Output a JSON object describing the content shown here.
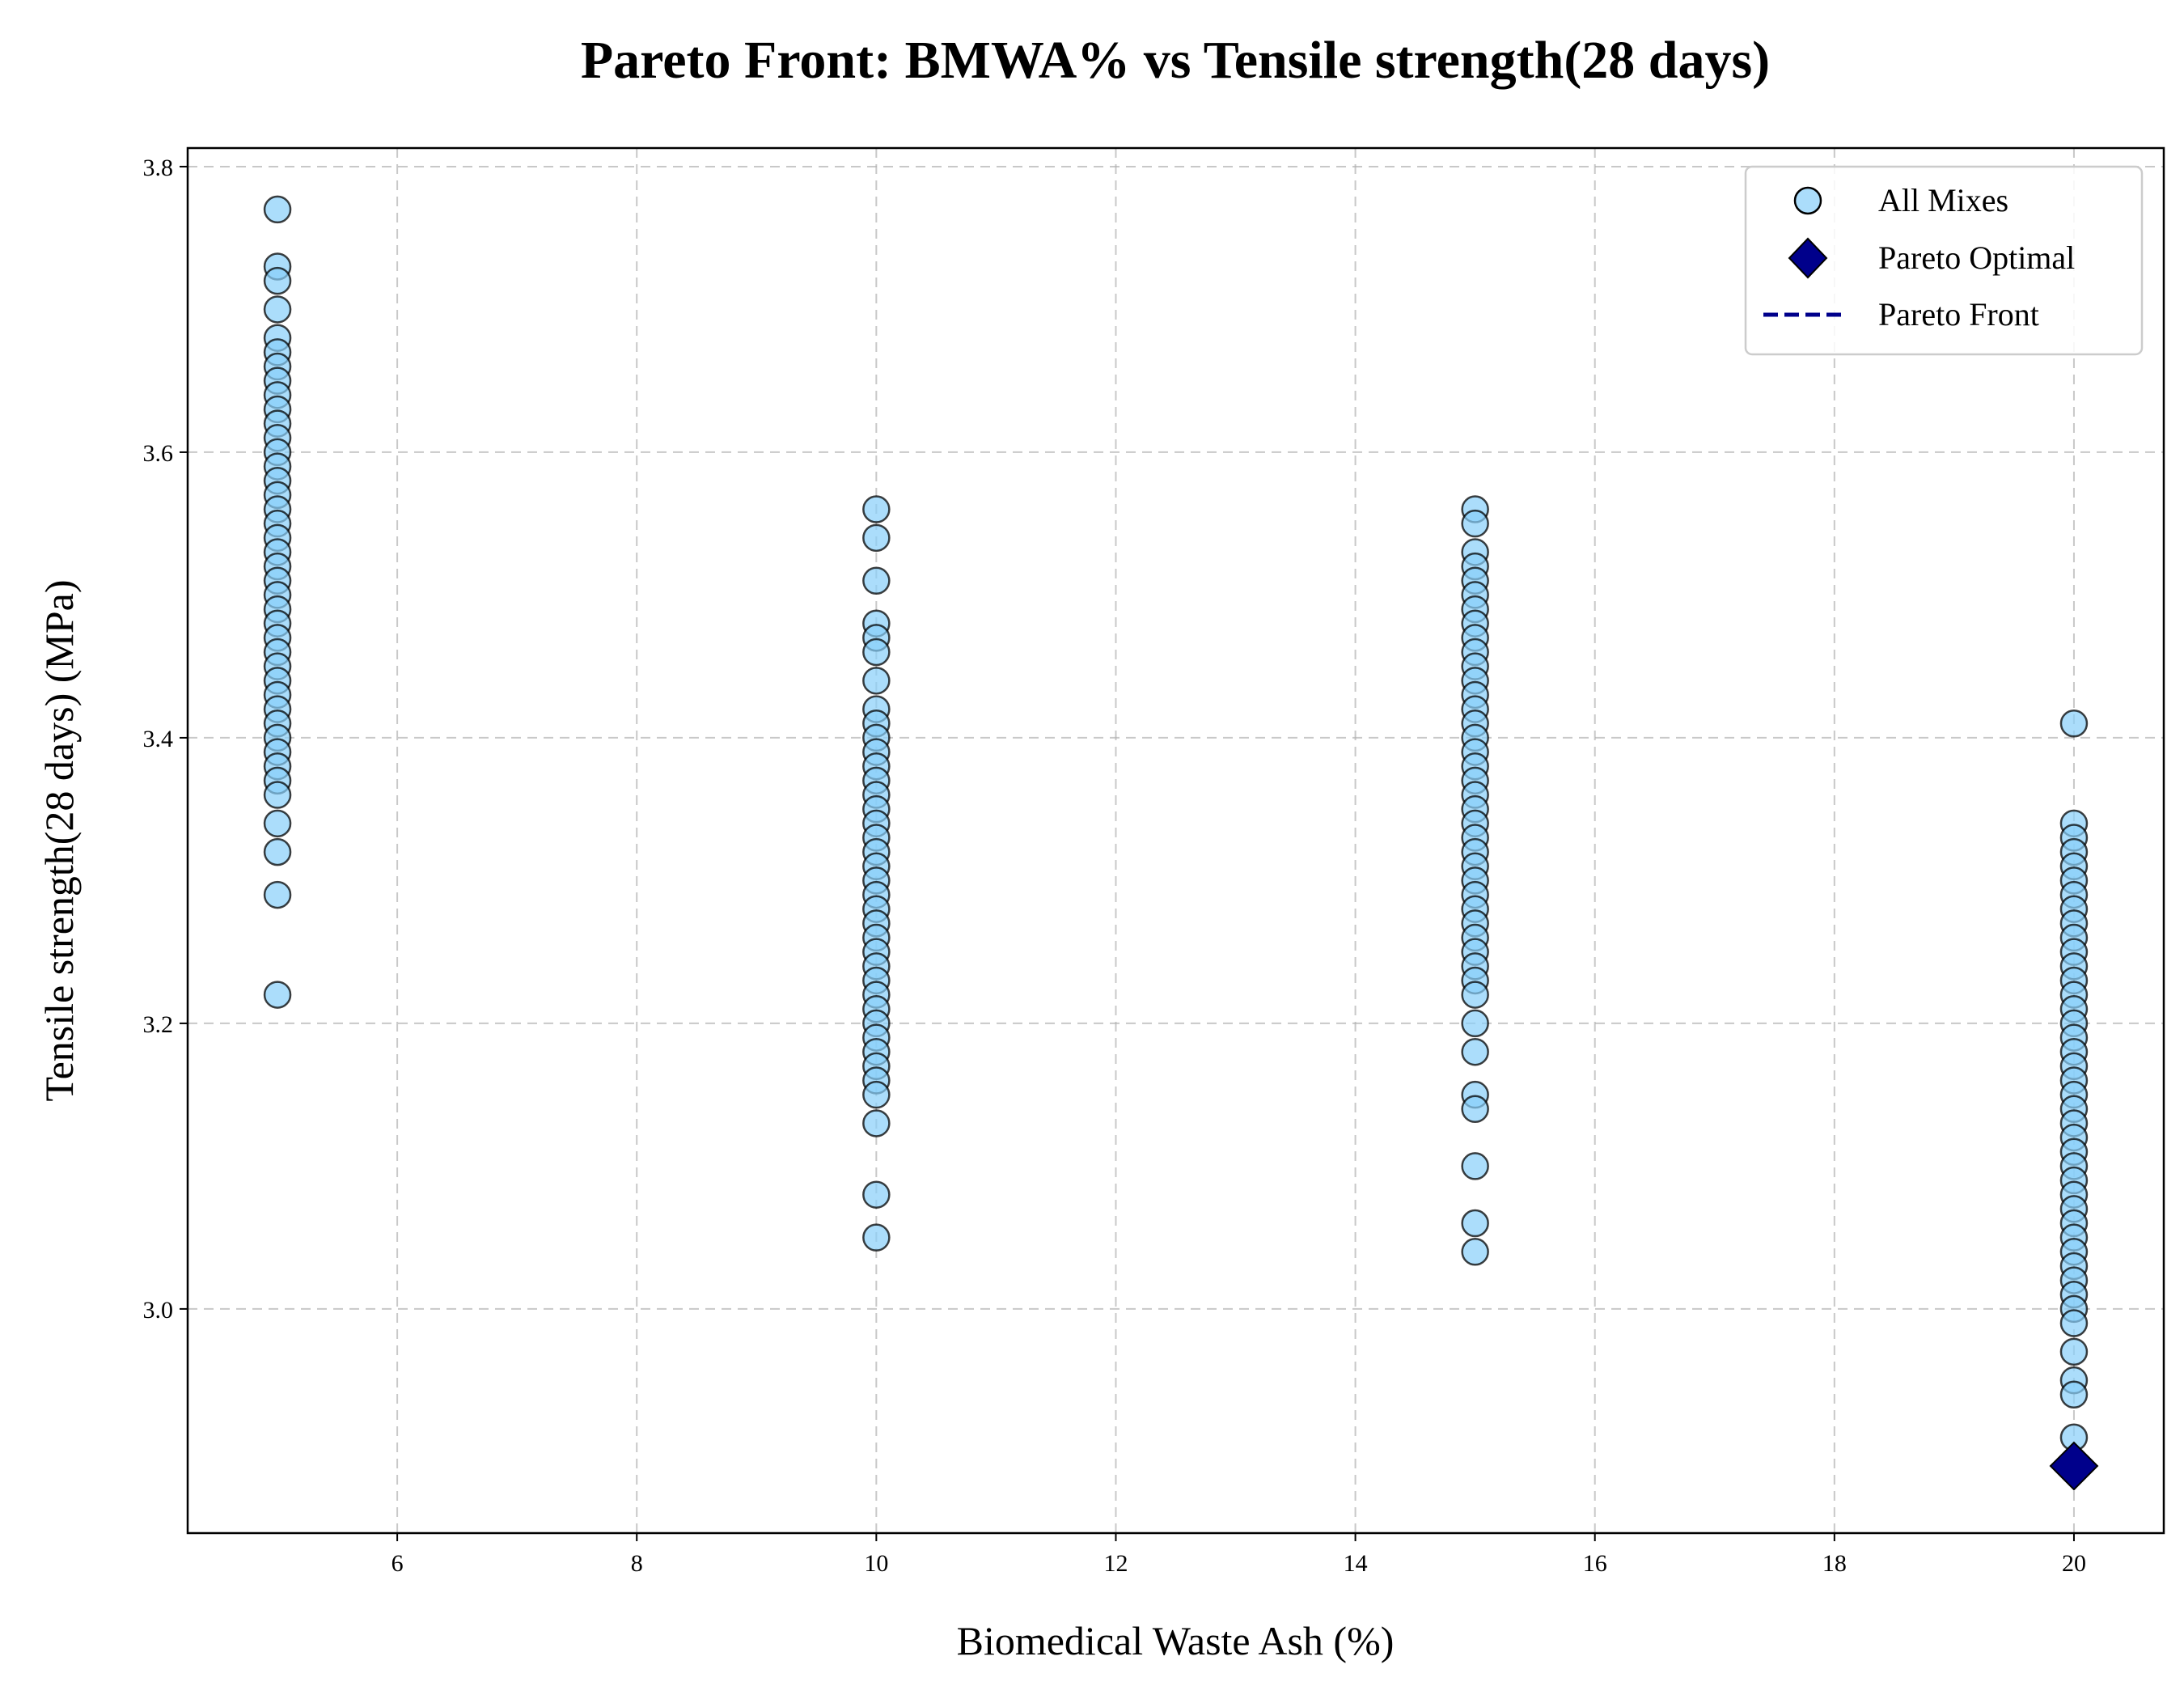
{
  "chart_data": {
    "type": "scatter",
    "title": "Pareto Front: BMWA% vs Tensile strength(28 days)",
    "xlabel": "Biomedical Waste Ash (%)",
    "ylabel": "Tensile strength(28 days) (MPa)",
    "xlim": [
      4.25,
      20.75
    ],
    "ylim": [
      2.843,
      3.813
    ],
    "xticks": [
      6,
      8,
      10,
      12,
      14,
      16,
      18,
      20
    ],
    "yticks": [
      3.0,
      3.2,
      3.4,
      3.6,
      3.8
    ],
    "grid": true,
    "legend_position": "top-right",
    "colors": {
      "all_mixes": "#87CEFA",
      "pareto": "#00008B",
      "edge": "#000000"
    },
    "legend": [
      {
        "label": "All Mixes",
        "marker": "circle"
      },
      {
        "label": "Pareto Optimal",
        "marker": "diamond"
      },
      {
        "label": "Pareto Front",
        "marker": "dashed-line"
      }
    ],
    "series": [
      {
        "name": "All Mixes",
        "points": [
          [
            5,
            3.77
          ],
          [
            5,
            3.73
          ],
          [
            5,
            3.72
          ],
          [
            5,
            3.7
          ],
          [
            5,
            3.68
          ],
          [
            5,
            3.67
          ],
          [
            5,
            3.66
          ],
          [
            5,
            3.65
          ],
          [
            5,
            3.64
          ],
          [
            5,
            3.63
          ],
          [
            5,
            3.62
          ],
          [
            5,
            3.61
          ],
          [
            5,
            3.6
          ],
          [
            5,
            3.59
          ],
          [
            5,
            3.58
          ],
          [
            5,
            3.57
          ],
          [
            5,
            3.56
          ],
          [
            5,
            3.55
          ],
          [
            5,
            3.54
          ],
          [
            5,
            3.53
          ],
          [
            5,
            3.52
          ],
          [
            5,
            3.51
          ],
          [
            5,
            3.5
          ],
          [
            5,
            3.49
          ],
          [
            5,
            3.48
          ],
          [
            5,
            3.47
          ],
          [
            5,
            3.46
          ],
          [
            5,
            3.45
          ],
          [
            5,
            3.44
          ],
          [
            5,
            3.43
          ],
          [
            5,
            3.42
          ],
          [
            5,
            3.41
          ],
          [
            5,
            3.4
          ],
          [
            5,
            3.39
          ],
          [
            5,
            3.38
          ],
          [
            5,
            3.37
          ],
          [
            5,
            3.36
          ],
          [
            5,
            3.34
          ],
          [
            5,
            3.32
          ],
          [
            5,
            3.29
          ],
          [
            5,
            3.22
          ],
          [
            10,
            3.56
          ],
          [
            10,
            3.54
          ],
          [
            10,
            3.51
          ],
          [
            10,
            3.48
          ],
          [
            10,
            3.47
          ],
          [
            10,
            3.46
          ],
          [
            10,
            3.44
          ],
          [
            10,
            3.42
          ],
          [
            10,
            3.41
          ],
          [
            10,
            3.4
          ],
          [
            10,
            3.39
          ],
          [
            10,
            3.38
          ],
          [
            10,
            3.37
          ],
          [
            10,
            3.36
          ],
          [
            10,
            3.35
          ],
          [
            10,
            3.34
          ],
          [
            10,
            3.33
          ],
          [
            10,
            3.32
          ],
          [
            10,
            3.31
          ],
          [
            10,
            3.3
          ],
          [
            10,
            3.29
          ],
          [
            10,
            3.28
          ],
          [
            10,
            3.27
          ],
          [
            10,
            3.26
          ],
          [
            10,
            3.25
          ],
          [
            10,
            3.24
          ],
          [
            10,
            3.23
          ],
          [
            10,
            3.22
          ],
          [
            10,
            3.21
          ],
          [
            10,
            3.2
          ],
          [
            10,
            3.19
          ],
          [
            10,
            3.18
          ],
          [
            10,
            3.17
          ],
          [
            10,
            3.16
          ],
          [
            10,
            3.15
          ],
          [
            10,
            3.13
          ],
          [
            10,
            3.08
          ],
          [
            10,
            3.05
          ],
          [
            15,
            3.56
          ],
          [
            15,
            3.55
          ],
          [
            15,
            3.53
          ],
          [
            15,
            3.52
          ],
          [
            15,
            3.51
          ],
          [
            15,
            3.5
          ],
          [
            15,
            3.49
          ],
          [
            15,
            3.48
          ],
          [
            15,
            3.47
          ],
          [
            15,
            3.46
          ],
          [
            15,
            3.45
          ],
          [
            15,
            3.44
          ],
          [
            15,
            3.43
          ],
          [
            15,
            3.42
          ],
          [
            15,
            3.41
          ],
          [
            15,
            3.4
          ],
          [
            15,
            3.39
          ],
          [
            15,
            3.38
          ],
          [
            15,
            3.37
          ],
          [
            15,
            3.36
          ],
          [
            15,
            3.35
          ],
          [
            15,
            3.34
          ],
          [
            15,
            3.33
          ],
          [
            15,
            3.32
          ],
          [
            15,
            3.31
          ],
          [
            15,
            3.3
          ],
          [
            15,
            3.29
          ],
          [
            15,
            3.28
          ],
          [
            15,
            3.27
          ],
          [
            15,
            3.26
          ],
          [
            15,
            3.25
          ],
          [
            15,
            3.24
          ],
          [
            15,
            3.23
          ],
          [
            15,
            3.22
          ],
          [
            15,
            3.2
          ],
          [
            15,
            3.18
          ],
          [
            15,
            3.15
          ],
          [
            15,
            3.14
          ],
          [
            15,
            3.1
          ],
          [
            15,
            3.06
          ],
          [
            15,
            3.04
          ],
          [
            20,
            3.41
          ],
          [
            20,
            3.34
          ],
          [
            20,
            3.33
          ],
          [
            20,
            3.32
          ],
          [
            20,
            3.31
          ],
          [
            20,
            3.3
          ],
          [
            20,
            3.29
          ],
          [
            20,
            3.28
          ],
          [
            20,
            3.27
          ],
          [
            20,
            3.26
          ],
          [
            20,
            3.25
          ],
          [
            20,
            3.24
          ],
          [
            20,
            3.23
          ],
          [
            20,
            3.22
          ],
          [
            20,
            3.21
          ],
          [
            20,
            3.2
          ],
          [
            20,
            3.19
          ],
          [
            20,
            3.18
          ],
          [
            20,
            3.17
          ],
          [
            20,
            3.16
          ],
          [
            20,
            3.15
          ],
          [
            20,
            3.14
          ],
          [
            20,
            3.13
          ],
          [
            20,
            3.12
          ],
          [
            20,
            3.11
          ],
          [
            20,
            3.1
          ],
          [
            20,
            3.09
          ],
          [
            20,
            3.08
          ],
          [
            20,
            3.07
          ],
          [
            20,
            3.06
          ],
          [
            20,
            3.05
          ],
          [
            20,
            3.04
          ],
          [
            20,
            3.03
          ],
          [
            20,
            3.02
          ],
          [
            20,
            3.01
          ],
          [
            20,
            3.0
          ],
          [
            20,
            2.99
          ],
          [
            20,
            2.97
          ],
          [
            20,
            2.95
          ],
          [
            20,
            2.94
          ],
          [
            20,
            2.91
          ]
        ]
      },
      {
        "name": "Pareto Optimal",
        "points": [
          [
            20,
            2.89
          ]
        ]
      }
    ],
    "pareto_front": [
      [
        20,
        2.89
      ]
    ]
  }
}
